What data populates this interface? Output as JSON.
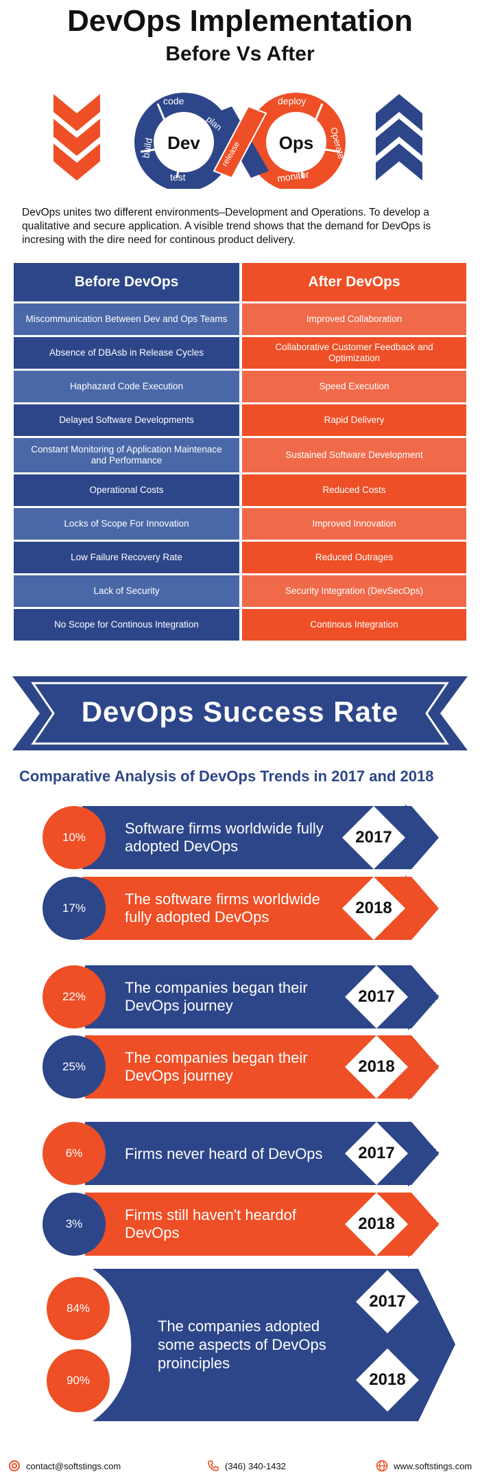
{
  "header": {
    "title": "DevOps Implementation",
    "subtitle": "Before Vs After"
  },
  "hero": {
    "code": "code",
    "plan": "plan",
    "build": "build",
    "dev": "Dev",
    "test": "test",
    "release": "release",
    "deploy": "deploy",
    "ops": "Ops",
    "operate": "Operate",
    "monitor": "monitor"
  },
  "intro": "DevOps unites two different environments–Development and Operations. To develop a qualitative and secure application. A visible trend shows  that  the demand for DevOps is incresing with the dire need for continous product delivery.",
  "comparison": {
    "before_heading": "Before DevOps",
    "after_heading": "After DevOps",
    "rows": [
      {
        "before": "Miscommunication Between Dev and Ops Teams",
        "after": "Improved Collaboration"
      },
      {
        "before": "Absence of DBAsb in Release Cycles",
        "after": "Collaborative Customer Feedback and Optimization"
      },
      {
        "before": "Haphazard Code Execution",
        "after": "Speed Execution"
      },
      {
        "before": "Delayed Software Developments",
        "after": "Rapid Delivery"
      },
      {
        "before": "Constant Monitoring of Application Maintenace and Performance",
        "after": "Sustained Software Development"
      },
      {
        "before": "Operational Costs",
        "after": "Reduced Costs"
      },
      {
        "before": "Locks of Scope For Innovation",
        "after": "Improved Innovation"
      },
      {
        "before": "Low Failure Recovery Rate",
        "after": "Reduced Outrages"
      },
      {
        "before": "Lack of Security",
        "after": "Security Integration (DevSecOps)"
      },
      {
        "before": "No Scope for Continous Integration",
        "after": "Continous Integration"
      }
    ]
  },
  "success": {
    "banner": "DevOps  Success Rate",
    "analysis_title": "Comparative Analysis of DevOps Trends in 2017 and 2018",
    "stats": [
      {
        "pct": "10%",
        "text": "Software firms worldwide fully adopted DevOps",
        "year": "2017",
        "band": "#2d4689",
        "circle": "orange"
      },
      {
        "pct": "17%",
        "text": "The software firms worldwide fully adopted DevOps",
        "year": "2018",
        "band": "#ee4f26",
        "circle": "blue"
      },
      {
        "pct": "22%",
        "text": "The companies began their DevOps journey",
        "year": "2017",
        "band": "#2d4689",
        "circle": "orange"
      },
      {
        "pct": "25%",
        "text": "The companies began their DevOps journey",
        "year": "2018",
        "band": "#ee4f26",
        "circle": "blue"
      },
      {
        "pct": "6%",
        "text": "Firms never heard of DevOps",
        "year": "2017",
        "band": "#2d4689",
        "circle": "orange"
      },
      {
        "pct": "3%",
        "text": "Firms still haven't heardof DevOps",
        "year": "2018",
        "band": "#ee4f26",
        "circle": "blue"
      }
    ],
    "final": {
      "pct_2017": "84%",
      "pct_2018": "90%",
      "text": "The companies adopted some aspects of DevOps proinciples",
      "year_2017": "2017",
      "year_2018": "2018"
    }
  },
  "footer": {
    "email": "contact@softstings.com",
    "phone": "(346) 340-1432",
    "website": "www.softstings.com"
  },
  "colors": {
    "blue": "#2d4689",
    "orange": "#ee4f26",
    "light_blue": "#4a68a7",
    "light_orange": "#f06a4a"
  }
}
